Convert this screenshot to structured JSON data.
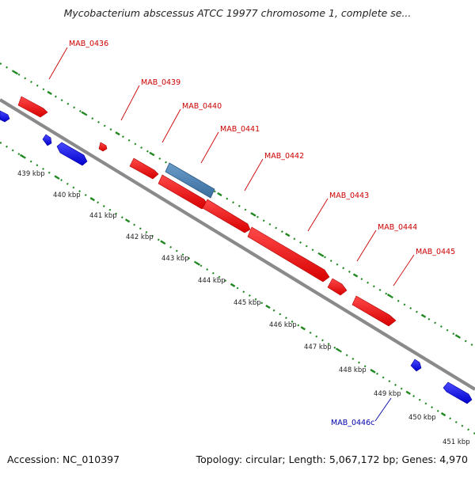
{
  "title": "Mycobacterium abscessus ATCC 19977 chromosome 1, complete se...",
  "footer": {
    "accession": "Accession: NC_010397",
    "stats": "Topology: circular; Length: 5,067,172 bp; Genes: 4,970"
  },
  "colors": {
    "forward_gene": "#ee1111",
    "reverse_gene": "#1111ee",
    "selected_gene": "#4a7eb0",
    "backbone": "#8a8a8a",
    "tick": "#228822",
    "forward_label": "#cc0000",
    "reverse_label": "#0000aa",
    "scale_label": "#222222"
  },
  "scale_labels": [
    "439 kbp",
    "440 kbp",
    "441 kbp",
    "442 kbp",
    "443 kbp",
    "444 kbp",
    "445 kbp",
    "446 kbp",
    "447 kbp",
    "448 kbp",
    "449 kbp",
    "450 kbp",
    "451 kbp"
  ],
  "genes": [
    {
      "label": "MAB_0436",
      "strand": "forward"
    },
    {
      "label": "MAB_0439",
      "strand": "forward"
    },
    {
      "label": "MAB_0440",
      "strand": "forward",
      "selected": true
    },
    {
      "label": "MAB_0441",
      "strand": "forward"
    },
    {
      "label": "MAB_0442",
      "strand": "forward"
    },
    {
      "label": "MAB_0443",
      "strand": "forward"
    },
    {
      "label": "MAB_0444",
      "strand": "forward"
    },
    {
      "label": "MAB_0445",
      "strand": "forward"
    },
    {
      "label": "MAB_0446c",
      "strand": "reverse"
    }
  ]
}
